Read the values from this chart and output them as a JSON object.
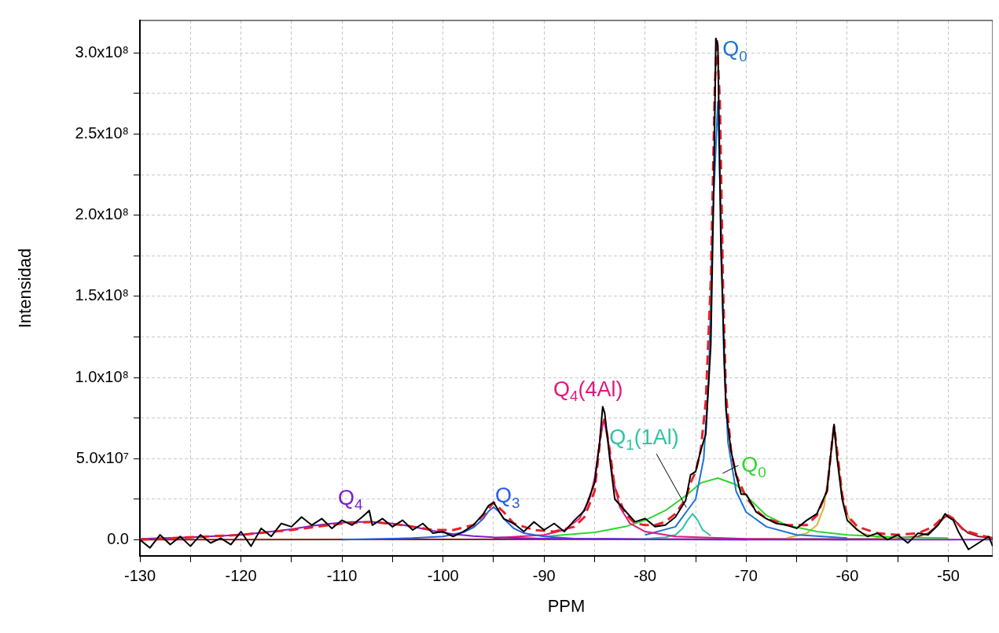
{
  "chart_data": {
    "type": "line",
    "xlabel": "PPM",
    "ylabel": "Intensidad",
    "xlim": [
      -130,
      -45.6
    ],
    "xticks": [
      -130,
      {
        "value": -125,
        "label": null
      },
      -120,
      {
        "value": -115,
        "label": null
      },
      -110,
      {
        "value": -105,
        "label": null
      },
      -100,
      {
        "value": -95,
        "label": null
      },
      -90,
      {
        "value": -85,
        "label": null
      },
      -80,
      {
        "value": -75,
        "label": null
      },
      -70,
      {
        "value": -65,
        "label": null
      },
      -60,
      {
        "value": -55,
        "label": null
      },
      -50
    ],
    "ylim": [
      -10000000.0,
      320000000.0
    ],
    "yticks": [
      {
        "value": 0,
        "label": "0.0"
      },
      {
        "value": 25000000.0,
        "label": null
      },
      {
        "value": 50000000.0,
        "label": "5.0x10⁷"
      },
      {
        "value": 75000000.0,
        "label": null
      },
      {
        "value": 100000000.0,
        "label": "1.0x10⁸"
      },
      {
        "value": 125000000.0,
        "label": null
      },
      {
        "value": 150000000.0,
        "label": "1.5x10⁸"
      },
      {
        "value": 175000000.0,
        "label": null
      },
      {
        "value": 200000000.0,
        "label": "2.0x10⁸"
      },
      {
        "value": 225000000.0,
        "label": null
      },
      {
        "value": 250000000.0,
        "label": "2.5x10⁸"
      },
      {
        "value": 275000000.0,
        "label": null
      },
      {
        "value": 300000000.0,
        "label": "3.0x10⁸"
      }
    ],
    "grid": true,
    "legend": false,
    "marker": "none",
    "line_style": "solid",
    "series": [
      {
        "color": "#000000",
        "x": [
          -130,
          -129,
          -128,
          -127,
          -126,
          -125,
          -124,
          -123,
          -122,
          -121,
          -120,
          -119,
          -118,
          -117,
          -116,
          -115,
          -114,
          -113,
          -112,
          -111,
          -110,
          -109,
          -108,
          -107.3,
          -107,
          -106,
          -105,
          -104,
          -103,
          -102,
          -101,
          -100,
          -99,
          -98,
          -97,
          -96,
          -95.5,
          -95,
          -94.5,
          -94,
          -93,
          -92,
          -91,
          -90,
          -89,
          -88,
          -87,
          -86,
          -85,
          -84.5,
          -84.2,
          -84,
          -83.5,
          -83,
          -82,
          -81,
          -80,
          -79,
          -78,
          -77,
          -76,
          -75.5,
          -75,
          -74.5,
          -74,
          -73.5,
          -73.2,
          -73,
          -72.8,
          -72.5,
          -72,
          -71.5,
          -71,
          -70.5,
          -70,
          -69,
          -68,
          -67,
          -66,
          -65,
          -64,
          -63,
          -62,
          -61.5,
          -61.3,
          -61,
          -60.5,
          -60,
          -59,
          -58,
          -57,
          -56,
          -55,
          -54,
          -53,
          -52,
          -51,
          -50.3,
          -50,
          -49.5,
          -49,
          -48,
          -47,
          -46,
          -45.6
        ],
        "values": [
          0,
          -5000000.0,
          3000000.0,
          -3000000.0,
          2000000.0,
          -4000000.0,
          3000000.0,
          -2000000.0,
          1000000.0,
          -3000000.0,
          5000000.0,
          -4000000.0,
          7000000.0,
          2000000.0,
          10000000.0,
          8000000.0,
          14000000.0,
          9000000.0,
          13000000.0,
          7000000.0,
          12000000.0,
          9000000.0,
          14000000.0,
          18000000.0,
          9000000.0,
          13000000.0,
          8000000.0,
          12000000.0,
          6000000.0,
          10000000.0,
          4000000.0,
          5000000.0,
          2000000.0,
          5000000.0,
          9000000.0,
          16000000.0,
          21000000.0,
          23000000.0,
          18000000.0,
          13000000.0,
          10000000.0,
          5000000.0,
          11000000.0,
          6000000.0,
          10000000.0,
          5000000.0,
          12000000.0,
          18000000.0,
          35000000.0,
          60000000.0,
          82000000.0,
          78000000.0,
          50000000.0,
          25000000.0,
          18000000.0,
          11000000.0,
          13000000.0,
          8000000.0,
          9000000.0,
          14000000.0,
          24000000.0,
          40000000.0,
          42000000.0,
          55000000.0,
          65000000.0,
          120000000.0,
          220000000.0,
          309000000.0,
          305000000.0,
          180000000.0,
          80000000.0,
          55000000.0,
          40000000.0,
          28000000.0,
          28000000.0,
          17000000.0,
          13000000.0,
          10000000.0,
          9000000.0,
          7000000.0,
          12000000.0,
          16000000.0,
          30000000.0,
          60000000.0,
          71000000.0,
          50000000.0,
          25000000.0,
          12000000.0,
          6000000.0,
          2000000.0,
          4000000.0,
          0,
          3000000.0,
          -2000000.0,
          4000000.0,
          3000000.0,
          9000000.0,
          16000000.0,
          14000000.0,
          12000000.0,
          5000000.0,
          -6000000.0,
          -2000000.0,
          2000000.0,
          -4000000.0
        ]
      },
      {
        "color": "#e8202a",
        "line_style": "dashed",
        "x": [
          -130,
          -120,
          -115,
          -110,
          -107,
          -104,
          -101,
          -99,
          -97,
          -96,
          -95,
          -94,
          -93,
          -91,
          -89,
          -87,
          -86,
          -85,
          -84.3,
          -84,
          -83.5,
          -83,
          -82,
          -81,
          -80,
          -79,
          -78,
          -77,
          -76,
          -75.5,
          -75,
          -74.5,
          -74,
          -73.5,
          -73.1,
          -72.9,
          -72.6,
          -72.3,
          -72,
          -71.5,
          -71,
          -70,
          -69,
          -68,
          -66,
          -64,
          -63,
          -62,
          -61.5,
          -61.3,
          -61,
          -60.5,
          -60,
          -59,
          -57,
          -55,
          -53,
          -51.5,
          -50.5,
          -50,
          -49.5,
          -48.5,
          -47,
          -45.6
        ],
        "values": [
          0,
          3000000.0,
          6000000.0,
          10000000.0,
          11000000.0,
          9000000.0,
          6000000.0,
          6000000.0,
          9000000.0,
          15000000.0,
          23000000.0,
          17000000.0,
          10000000.0,
          6000000.0,
          5000000.0,
          8000000.0,
          14000000.0,
          30000000.0,
          70000000.0,
          74000000.0,
          55000000.0,
          32000000.0,
          16000000.0,
          10000000.0,
          9000000.0,
          9000000.0,
          11000000.0,
          16000000.0,
          25000000.0,
          35000000.0,
          42000000.0,
          55000000.0,
          85000000.0,
          160000000.0,
          280000000.0,
          309000000.0,
          270000000.0,
          160000000.0,
          90000000.0,
          55000000.0,
          40000000.0,
          26000000.0,
          18000000.0,
          13000000.0,
          9000000.0,
          9000000.0,
          15000000.0,
          30000000.0,
          60000000.0,
          70000000.0,
          55000000.0,
          28000000.0,
          15000000.0,
          8000000.0,
          4000000.0,
          3000000.0,
          4000000.0,
          8000000.0,
          14000000.0,
          15000000.0,
          13000000.0,
          6000000.0,
          3000000.0,
          1000000.0
        ]
      },
      {
        "name": "Q$_{4}$",
        "color": "#7b1fd0",
        "x": [
          -130,
          -125,
          -120,
          -117,
          -115,
          -113,
          -111,
          -109,
          -107,
          -105,
          -103,
          -101,
          -99,
          -97,
          -95,
          -90,
          -80,
          -70,
          -45.6
        ],
        "values": [
          500000.0,
          1500000.0,
          3000000.0,
          5000000.0,
          6500000.0,
          8500000.0,
          10000000.0,
          11000000.0,
          11000000.0,
          10000000.0,
          8000000.0,
          5500000.0,
          3500000.0,
          2200000.0,
          1500000.0,
          700000.0,
          300000.0,
          100000.0,
          0
        ]
      },
      {
        "name": "Q$_{3}$",
        "color": "#2a5de0",
        "x": [
          -110,
          -103,
          -100,
          -98,
          -97,
          -96,
          -95.5,
          -95,
          -94.5,
          -94,
          -93,
          -92,
          -90,
          -87,
          -80,
          -70
        ],
        "values": [
          0,
          1000000.0,
          2000000.0,
          4500000.0,
          7500000.0,
          13000000.0,
          17500000.0,
          20000000.0,
          17500000.0,
          13000000.0,
          7000000.0,
          4000000.0,
          2000000.0,
          700000.0,
          200000.0,
          0
        ]
      },
      {
        "name": "Q$_{4}$(4Al)",
        "color": "#e0177f",
        "x": [
          -95,
          -90,
          -88,
          -86.5,
          -85.5,
          -85,
          -84.5,
          -84.1,
          -83.7,
          -83.2,
          -82.5,
          -81.5,
          -80,
          -77,
          -70,
          -60
        ],
        "values": [
          1000000.0,
          3000000.0,
          6000000.0,
          13000000.0,
          25000000.0,
          38000000.0,
          60000000.0,
          74000000.0,
          63000000.0,
          38000000.0,
          20000000.0,
          10000000.0,
          5000000.0,
          2000000.0,
          500000.0,
          0
        ]
      },
      {
        "name": "Q$_{1}$(1Al)",
        "color": "#2ec4a3",
        "x": [
          -80,
          -78,
          -77,
          -76.3,
          -75.8,
          -75.3,
          -74.8,
          -74.3,
          -73.5
        ],
        "values": [
          500000.0,
          1500000.0,
          3000000.0,
          7000000.0,
          12000000.0,
          16000000.0,
          12000000.0,
          6000000.0,
          2500000.0
        ]
      },
      {
        "name": "Q$_{0}$",
        "color": "#1e74d4",
        "x": [
          -80,
          -77,
          -75,
          -74.2,
          -73.7,
          -73.3,
          -72.8,
          -72.5,
          -72.2,
          -71.8,
          -71,
          -70,
          -68,
          -65,
          -60
        ],
        "values": [
          3000000.0,
          8000000.0,
          25000000.0,
          50000000.0,
          100000000.0,
          200000000.0,
          270000000.0,
          200000000.0,
          110000000.0,
          60000000.0,
          30000000.0,
          17000000.0,
          8000000.0,
          3000000.0,
          1000000.0
        ]
      },
      {
        "name": "Q$_{0}$",
        "color": "#2fd62f",
        "x": [
          -90,
          -85,
          -82,
          -80,
          -78,
          -76,
          -74.5,
          -72.8,
          -71,
          -69.5,
          -68,
          -66,
          -63,
          -60,
          -55,
          -50
        ],
        "values": [
          2000000.0,
          4500000.0,
          8000000.0,
          12000000.0,
          18000000.0,
          27000000.0,
          35000000.0,
          38000000.0,
          34000000.0,
          24000000.0,
          15000000.0,
          9000000.0,
          5000000.0,
          3000000.0,
          1500000.0,
          1000000.0
        ]
      },
      {
        "color": "#e0b040",
        "x": [
          -66,
          -64,
          -63,
          -62.3,
          -61.8,
          -61.3,
          -60.8,
          -60.3,
          -59.5,
          -58.5,
          -57,
          -55
        ],
        "values": [
          1000000.0,
          4000000.0,
          9000000.0,
          20000000.0,
          43000000.0,
          70000000.0,
          43000000.0,
          20000000.0,
          9000000.0,
          4000000.0,
          1500000.0,
          500000.0
        ]
      },
      {
        "color": "#8b1a1a",
        "x": [
          -130,
          -56,
          -53,
          -52,
          -51.2,
          -50.5,
          -50.1,
          -49.5,
          -48.8,
          -48,
          -47,
          -45.6
        ],
        "values": [
          0,
          500000.0,
          2000000.0,
          4000000.0,
          8000000.0,
          13000000.0,
          15000000.0,
          13000000.0,
          8000000.0,
          4000000.0,
          2000000.0,
          1000000.0
        ]
      }
    ]
  }
}
